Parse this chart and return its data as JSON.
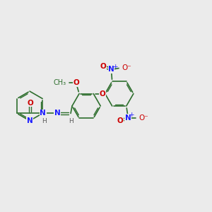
{
  "bg_color": "#ebebeb",
  "bond_color": "#2d6e2d",
  "N_color": "#1a1aff",
  "O_color": "#cc0000",
  "H_color": "#5a5a5a",
  "figsize": [
    3.0,
    3.0
  ],
  "dpi": 100,
  "xlim": [
    0,
    12
  ],
  "ylim": [
    0,
    12
  ]
}
